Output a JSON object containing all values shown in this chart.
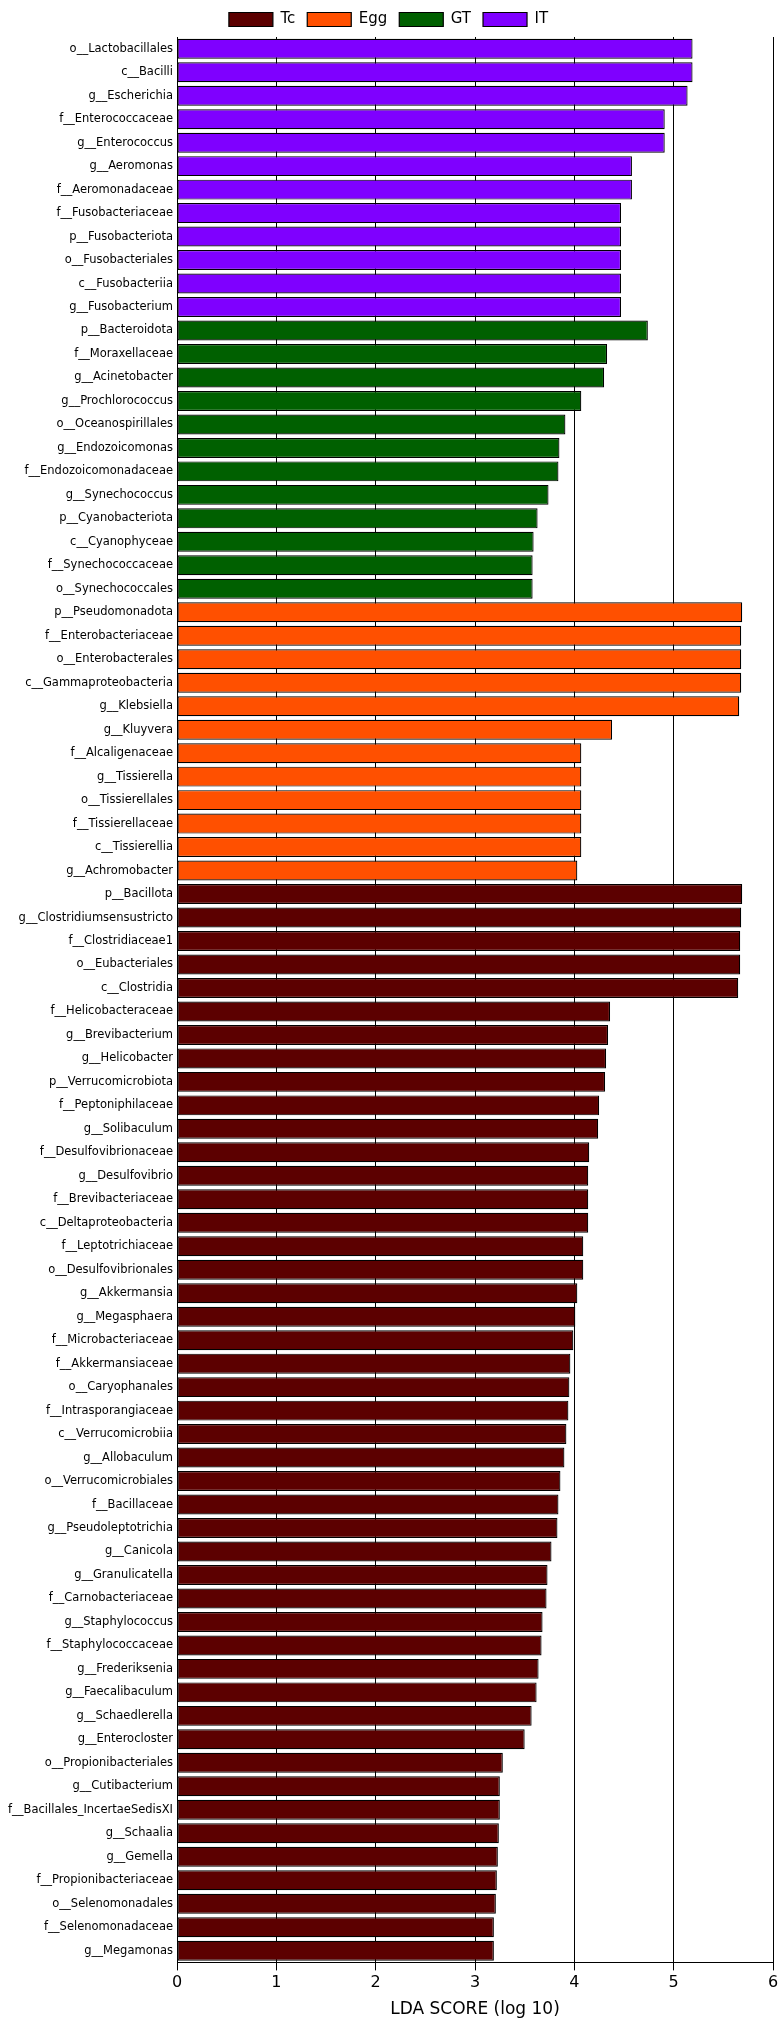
{
  "chart_data": {
    "type": "bar",
    "orientation": "horizontal",
    "stacked": true,
    "xlabel": "LDA SCORE (log 10)",
    "xlim": [
      0,
      6
    ],
    "xticks": [
      0,
      1,
      2,
      3,
      4,
      5,
      6
    ],
    "grid": "x",
    "legend": "top",
    "categories": [
      "o__Lactobacillales",
      "c__Bacilli",
      "g__Escherichia",
      "f__Enterococcaceae",
      "g__Enterococcus",
      "g__Aeromonas",
      "f__Aeromonadaceae",
      "f__Fusobacteriaceae",
      "p__Fusobacteriota",
      "o__Fusobacteriales",
      "c__Fusobacteriia",
      "g__Fusobacterium",
      "p__Bacteroidota",
      "f__Moraxellaceae",
      "g__Acinetobacter",
      "g__Prochlorococcus",
      "o__Oceanospirillales",
      "g__Endozoicomonas",
      "f__Endozoicomonadaceae",
      "g__Synechococcus",
      "p__Cyanobacteriota",
      "c__Cyanophyceae",
      "f__Synechococcaceae",
      "o__Synechococcales",
      "p__Pseudomonadota",
      "f__Enterobacteriaceae",
      "o__Enterobacterales",
      "c__Gammaproteobacteria",
      "g__Klebsiella",
      "g__Kluyvera",
      "f__Alcaligenaceae",
      "g__Tissierella",
      "o__Tissierellales",
      "f__Tissierellaceae",
      "c__Tissierellia",
      "g__Achromobacter",
      "p__Bacillota",
      "g__Clostridiumsensustricto",
      "f__Clostridiaceae1",
      "o__Eubacteriales",
      "c__Clostridia",
      "f__Helicobacteraceae",
      "g__Brevibacterium",
      "g__Helicobacter",
      "p__Verrucomicrobiota",
      "f__Peptoniphilaceae",
      "g__Solibaculum",
      "f__Desulfovibrionaceae",
      "g__Desulfovibrio",
      "f__Brevibacteriaceae",
      "c__Deltaproteobacteria",
      "f__Leptotrichiaceae",
      "o__Desulfovibrionales",
      "g__Akkermansia",
      "g__Megasphaera",
      "f__Microbacteriaceae",
      "f__Akkermansiaceae",
      "o__Caryophanales",
      "f__Intrasporangiaceae",
      "c__Verrucomicrobiia",
      "g__Allobaculum",
      "o__Verrucomicrobiales",
      "f__Bacillaceae",
      "g__Pseudoleptotrichia",
      "g__Canicola",
      "g__Granulicatella",
      "f__Carnobacteriaceae",
      "g__Staphylococcus",
      "f__Staphylococcaceae",
      "g__Frederiksenia",
      "g__Faecalibaculum",
      "g__Schaedlerella",
      "g__Enterocloster",
      "o__Propionibacteriales",
      "g__Cutibacterium",
      "f__Bacillales_IncertaeSedisXI",
      "g__Schaalia",
      "g__Gemella",
      "f__Propionibacteriaceae",
      "o__Selenomonadales",
      "f__Selenomonadaceae",
      "g__Megamonas"
    ],
    "series": [
      {
        "name": "Tc",
        "color": "#5c0000",
        "values": [
          null,
          null,
          null,
          null,
          null,
          null,
          null,
          null,
          null,
          null,
          null,
          null,
          null,
          null,
          null,
          null,
          null,
          null,
          null,
          null,
          null,
          null,
          null,
          null,
          null,
          null,
          null,
          null,
          null,
          null,
          null,
          null,
          null,
          null,
          null,
          null,
          5.69,
          5.68,
          5.67,
          5.67,
          5.65,
          4.36,
          4.34,
          4.32,
          4.31,
          4.25,
          4.24,
          4.15,
          4.14,
          4.14,
          4.14,
          4.09,
          4.09,
          4.03,
          4.01,
          3.99,
          3.96,
          3.95,
          3.94,
          3.92,
          3.9,
          3.86,
          3.84,
          3.83,
          3.77,
          3.73,
          3.72,
          3.68,
          3.67,
          3.64,
          3.62,
          3.57,
          3.5,
          3.28,
          3.25,
          3.25,
          3.24,
          3.23,
          3.22,
          3.21,
          3.19,
          3.19
        ]
      },
      {
        "name": "Egg",
        "color": "#ff5000",
        "values": [
          null,
          null,
          null,
          null,
          null,
          null,
          null,
          null,
          null,
          null,
          null,
          null,
          null,
          null,
          null,
          null,
          null,
          null,
          null,
          null,
          null,
          null,
          null,
          null,
          5.69,
          5.68,
          5.68,
          5.68,
          5.66,
          4.38,
          4.07,
          4.07,
          4.07,
          4.07,
          4.07,
          4.03,
          null,
          null,
          null,
          null,
          null,
          null,
          null,
          null,
          null,
          null,
          null,
          null,
          null,
          null,
          null,
          null,
          null,
          null,
          null,
          null,
          null,
          null,
          null,
          null,
          null,
          null,
          null,
          null,
          null,
          null,
          null,
          null,
          null,
          null,
          null,
          null,
          null,
          null,
          null,
          null,
          null,
          null,
          null,
          null,
          null,
          null
        ]
      },
      {
        "name": "GT",
        "color": "#006000",
        "values": [
          null,
          null,
          null,
          null,
          null,
          null,
          null,
          null,
          null,
          null,
          null,
          null,
          4.74,
          4.33,
          4.3,
          4.07,
          3.91,
          3.85,
          3.84,
          3.74,
          3.63,
          3.59,
          3.58,
          3.58,
          null,
          null,
          null,
          null,
          null,
          null,
          null,
          null,
          null,
          null,
          null,
          null,
          null,
          null,
          null,
          null,
          null,
          null,
          null,
          null,
          null,
          null,
          null,
          null,
          null,
          null,
          null,
          null,
          null,
          null,
          null,
          null,
          null,
          null,
          null,
          null,
          null,
          null,
          null,
          null,
          null,
          null,
          null,
          null,
          null,
          null,
          null,
          null,
          null,
          null,
          null,
          null,
          null,
          null,
          null,
          null,
          null,
          null
        ]
      },
      {
        "name": "IT",
        "color": "#7f00ff",
        "values": [
          5.19,
          5.19,
          5.14,
          4.91,
          4.91,
          4.58,
          4.58,
          4.47,
          4.47,
          4.47,
          4.47,
          4.47,
          null,
          null,
          null,
          null,
          null,
          null,
          null,
          null,
          null,
          null,
          null,
          null,
          null,
          null,
          null,
          null,
          null,
          null,
          null,
          null,
          null,
          null,
          null,
          null,
          null,
          null,
          null,
          null,
          null,
          null,
          null,
          null,
          null,
          null,
          null,
          null,
          null,
          null,
          null,
          null,
          null,
          null,
          null,
          null,
          null,
          null,
          null,
          null,
          null,
          null,
          null,
          null,
          null,
          null,
          null,
          null,
          null,
          null,
          null,
          null,
          null,
          null,
          null,
          null,
          null,
          null,
          null,
          null,
          null,
          null
        ]
      }
    ]
  }
}
